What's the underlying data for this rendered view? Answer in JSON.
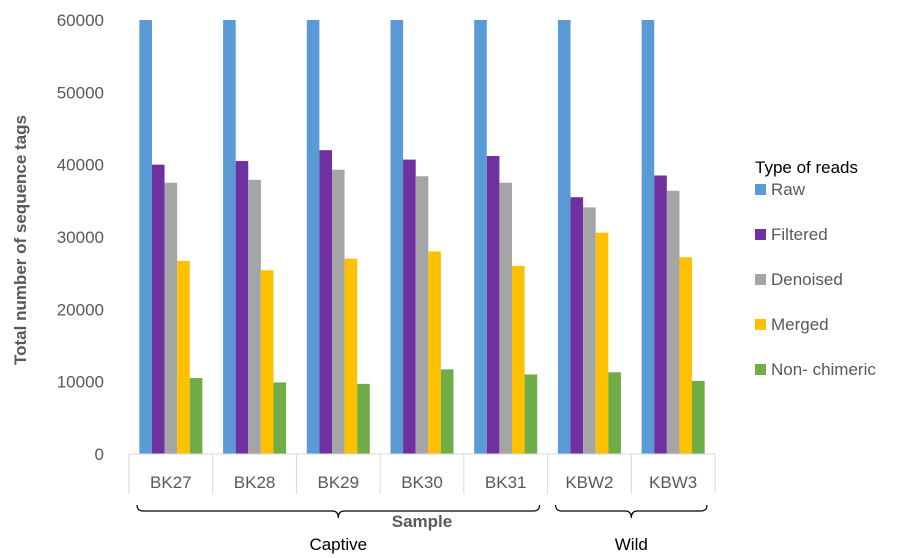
{
  "chart_data": {
    "type": "bar",
    "categories": [
      "BK27",
      "BK28",
      "BK29",
      "BK30",
      "BK31",
      "KBW2",
      "KBW3"
    ],
    "series": [
      {
        "name": "Raw",
        "color": "#5B9BD5",
        "values": [
          60000,
          60000,
          60000,
          60000,
          60000,
          60000,
          60000
        ]
      },
      {
        "name": "Filtered",
        "color": "#7030A0",
        "values": [
          40000,
          40500,
          42000,
          40700,
          41200,
          35500,
          38500
        ]
      },
      {
        "name": "Denoised",
        "color": "#A5A5A5",
        "values": [
          37500,
          37900,
          39300,
          38400,
          37500,
          34100,
          36400
        ]
      },
      {
        "name": "Merged",
        "color": "#FFC000",
        "values": [
          26700,
          25400,
          27000,
          28000,
          26000,
          30600,
          27200
        ]
      },
      {
        "name": "Non- chimeric",
        "color": "#70AD47",
        "values": [
          10500,
          9900,
          9700,
          11700,
          11000,
          11300,
          10100
        ]
      }
    ],
    "xlabel": "Sample",
    "ylabel": "Total number of sequence tags",
    "ylim": [
      0,
      60000
    ],
    "yticks": [
      0,
      10000,
      20000,
      30000,
      40000,
      50000,
      60000
    ],
    "grid": false,
    "legend_title": "Type of reads",
    "legend_position": "right",
    "groups": [
      {
        "label": "Captive",
        "categories": [
          "BK27",
          "BK28",
          "BK29",
          "BK30",
          "BK31"
        ]
      },
      {
        "label": "Wild",
        "categories": [
          "KBW2",
          "KBW3"
        ]
      }
    ]
  }
}
